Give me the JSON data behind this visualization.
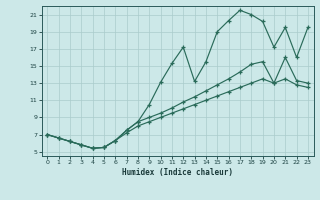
{
  "xlabel": "Humidex (Indice chaleur)",
  "bg_color": "#cce8e8",
  "grid_color": "#aacccc",
  "line_color": "#2a6b5a",
  "xlim": [
    -0.5,
    23.5
  ],
  "ylim": [
    4.5,
    22
  ],
  "yticks": [
    5,
    7,
    9,
    11,
    13,
    15,
    17,
    19,
    21
  ],
  "xticks": [
    0,
    1,
    2,
    3,
    4,
    5,
    6,
    7,
    8,
    9,
    10,
    11,
    12,
    13,
    14,
    15,
    16,
    17,
    18,
    19,
    20,
    21,
    22,
    23
  ],
  "curve1_x": [
    0,
    1,
    2,
    3,
    4,
    5,
    6,
    7,
    8,
    9,
    10,
    11,
    12,
    13,
    14,
    15,
    16,
    17,
    18,
    19,
    20,
    21,
    22,
    23
  ],
  "curve1_y": [
    7.0,
    6.6,
    6.2,
    5.8,
    5.4,
    5.5,
    6.3,
    7.5,
    8.5,
    10.5,
    13.1,
    15.3,
    17.2,
    13.2,
    15.5,
    19.0,
    20.3,
    21.5,
    21.0,
    20.2,
    17.2,
    19.5,
    16.0,
    19.5
  ],
  "curve2_x": [
    0,
    1,
    2,
    3,
    4,
    5,
    6,
    7,
    8,
    9,
    10,
    11,
    12,
    13,
    14,
    15,
    16,
    17,
    18,
    19,
    20,
    21,
    22,
    23
  ],
  "curve2_y": [
    7.0,
    6.6,
    6.2,
    5.8,
    5.4,
    5.5,
    6.3,
    7.5,
    8.5,
    9.0,
    9.5,
    10.1,
    10.8,
    11.4,
    12.1,
    12.8,
    13.5,
    14.3,
    15.2,
    15.5,
    13.0,
    16.0,
    13.3,
    13.0
  ],
  "curve3_x": [
    0,
    1,
    2,
    3,
    4,
    5,
    6,
    7,
    8,
    9,
    10,
    11,
    12,
    13,
    14,
    15,
    16,
    17,
    18,
    19,
    20,
    21,
    22,
    23
  ],
  "curve3_y": [
    7.0,
    6.6,
    6.2,
    5.8,
    5.4,
    5.5,
    6.3,
    7.2,
    8.0,
    8.5,
    9.0,
    9.5,
    10.0,
    10.5,
    11.0,
    11.5,
    12.0,
    12.5,
    13.0,
    13.5,
    13.0,
    13.5,
    12.8,
    12.5
  ]
}
